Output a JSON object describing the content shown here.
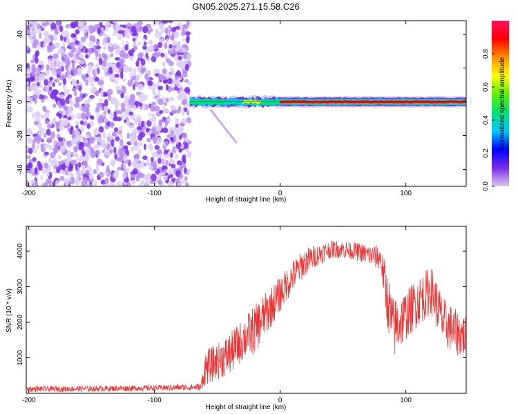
{
  "title": "GN05.2025.271.15.58.C26",
  "chart_data": [
    {
      "type": "heatmap",
      "name": "spectrogram",
      "xlabel": "Height of straight line (km)",
      "ylabel": "Frequency (Hz)",
      "xlim": [
        -202,
        148
      ],
      "ylim": [
        -50,
        48
      ],
      "xticks": [
        -200,
        -100,
        0,
        100
      ],
      "yticks": [
        -40,
        -20,
        0,
        20,
        40
      ],
      "colorbar": {
        "label": "Normalized spectral amplitude",
        "range": [
          0,
          1
        ],
        "ticks": [
          "0.0",
          "0.2",
          "0.4",
          "0.6",
          "0.8"
        ],
        "tick_values": [
          0,
          0.2,
          0.4,
          0.6,
          0.8
        ],
        "colormap": [
          "#d8c8f0",
          "#7a2ee6",
          "#0000ff",
          "#00c8ff",
          "#00e07a",
          "#5af000",
          "#ffff00",
          "#ff9000",
          "#ff0000",
          "#ff1060"
        ]
      },
      "noise_region": {
        "x_from": -202,
        "x_to": -72,
        "amplitude": 0.15
      },
      "signal_band": {
        "x_from": -72,
        "x_to": 148,
        "frequency": 0,
        "segments": [
          {
            "x_from": -72,
            "x_to": -45,
            "peak": 0.55
          },
          {
            "x_from": -45,
            "x_to": -30,
            "peak": 0.45
          },
          {
            "x_from": -30,
            "x_to": -15,
            "peak": 0.7
          },
          {
            "x_from": -15,
            "x_to": 0,
            "peak": 0.5
          },
          {
            "x_from": 0,
            "x_to": 148,
            "peak": 0.95
          }
        ],
        "branch": {
          "x": [
            -55,
            -35
          ],
          "y": [
            -5,
            -24
          ]
        }
      }
    },
    {
      "type": "line",
      "name": "snr",
      "xlabel": "Height of straight line (km)",
      "ylabel": "SNR (10 * v/v)",
      "xlim": [
        -202,
        148
      ],
      "ylim": [
        0,
        4700
      ],
      "xticks": [
        -200,
        -100,
        0,
        100
      ],
      "yticks": [
        1000,
        2000,
        3000,
        4000
      ],
      "color": "#ee3333",
      "envelope": {
        "x": [
          -202,
          -150,
          -100,
          -63,
          -60,
          -50,
          -40,
          -30,
          -20,
          -10,
          0,
          10,
          20,
          30,
          40,
          50,
          60,
          70,
          80,
          85,
          90,
          100,
          110,
          120,
          130,
          140,
          148
        ],
        "base": [
          120,
          130,
          150,
          180,
          700,
          900,
          1100,
          1500,
          1800,
          2300,
          2800,
          3300,
          3700,
          3900,
          4050,
          4050,
          4000,
          3900,
          3800,
          2700,
          1800,
          2200,
          2600,
          2900,
          2000,
          1700,
          1600
        ],
        "spread": [
          80,
          80,
          80,
          100,
          500,
          500,
          600,
          600,
          700,
          600,
          500,
          450,
          400,
          300,
          250,
          250,
          250,
          300,
          350,
          800,
          900,
          700,
          700,
          700,
          700,
          650,
          600
        ]
      }
    }
  ]
}
